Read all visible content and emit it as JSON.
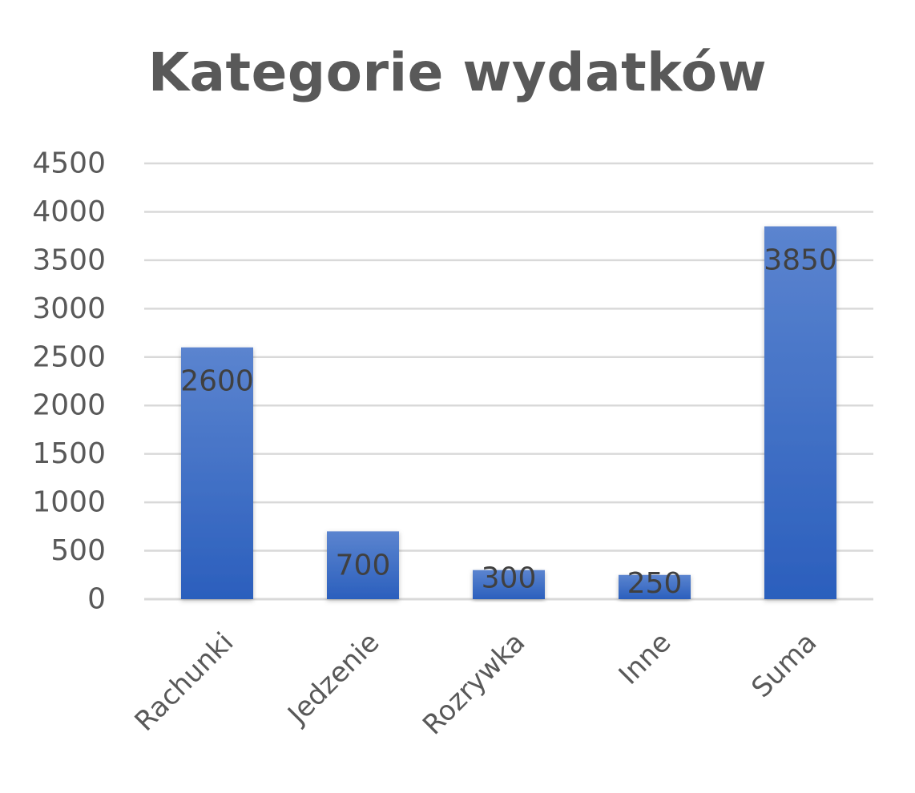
{
  "chart_data": {
    "type": "bar",
    "title": "Kategorie wydatków",
    "xlabel": "",
    "ylabel": "",
    "categories": [
      "Rachunki",
      "Jedzenie",
      "Rozrywka",
      "Inne",
      "Suma"
    ],
    "values": [
      2600,
      700,
      300,
      250,
      3850
    ],
    "data_labels": [
      "2600",
      "700",
      "300",
      "250",
      "3850"
    ],
    "ylim": [
      0,
      4500
    ],
    "yticks": [
      0,
      500,
      1000,
      1500,
      2000,
      2500,
      3000,
      3500,
      4000,
      4500
    ],
    "grid": true,
    "legend": "none",
    "colors": {
      "bar_top": "#5b84cf",
      "bar_bottom": "#2b5fbd",
      "grid": "#d9d9d9",
      "axis": "#d9d9d9",
      "text": "#595959"
    }
  }
}
